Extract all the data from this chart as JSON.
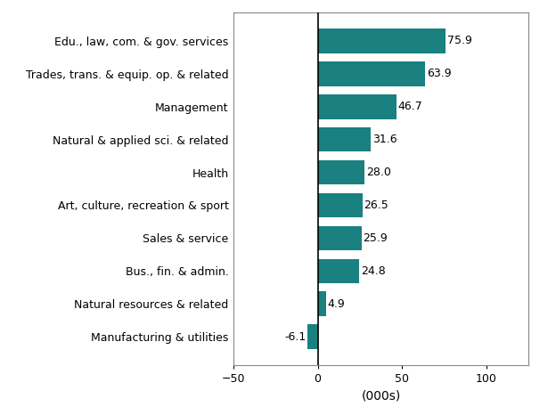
{
  "categories": [
    "Manufacturing & utilities",
    "Natural resources & related",
    "Bus., fin. & admin.",
    "Sales & service",
    "Art, culture, recreation & sport",
    "Health",
    "Natural & applied sci. & related",
    "Management",
    "Trades, trans. & equip. op. & related",
    "Edu., law, com. & gov. services"
  ],
  "values": [
    -6.1,
    4.9,
    24.8,
    25.9,
    26.5,
    28.0,
    31.6,
    46.7,
    63.9,
    75.9
  ],
  "bar_color_hex": "#1a8080",
  "xlabel": "(000s)",
  "xlim": [
    -50,
    125
  ],
  "xticks": [
    -50,
    0,
    50,
    100
  ],
  "background_color": "#ffffff"
}
